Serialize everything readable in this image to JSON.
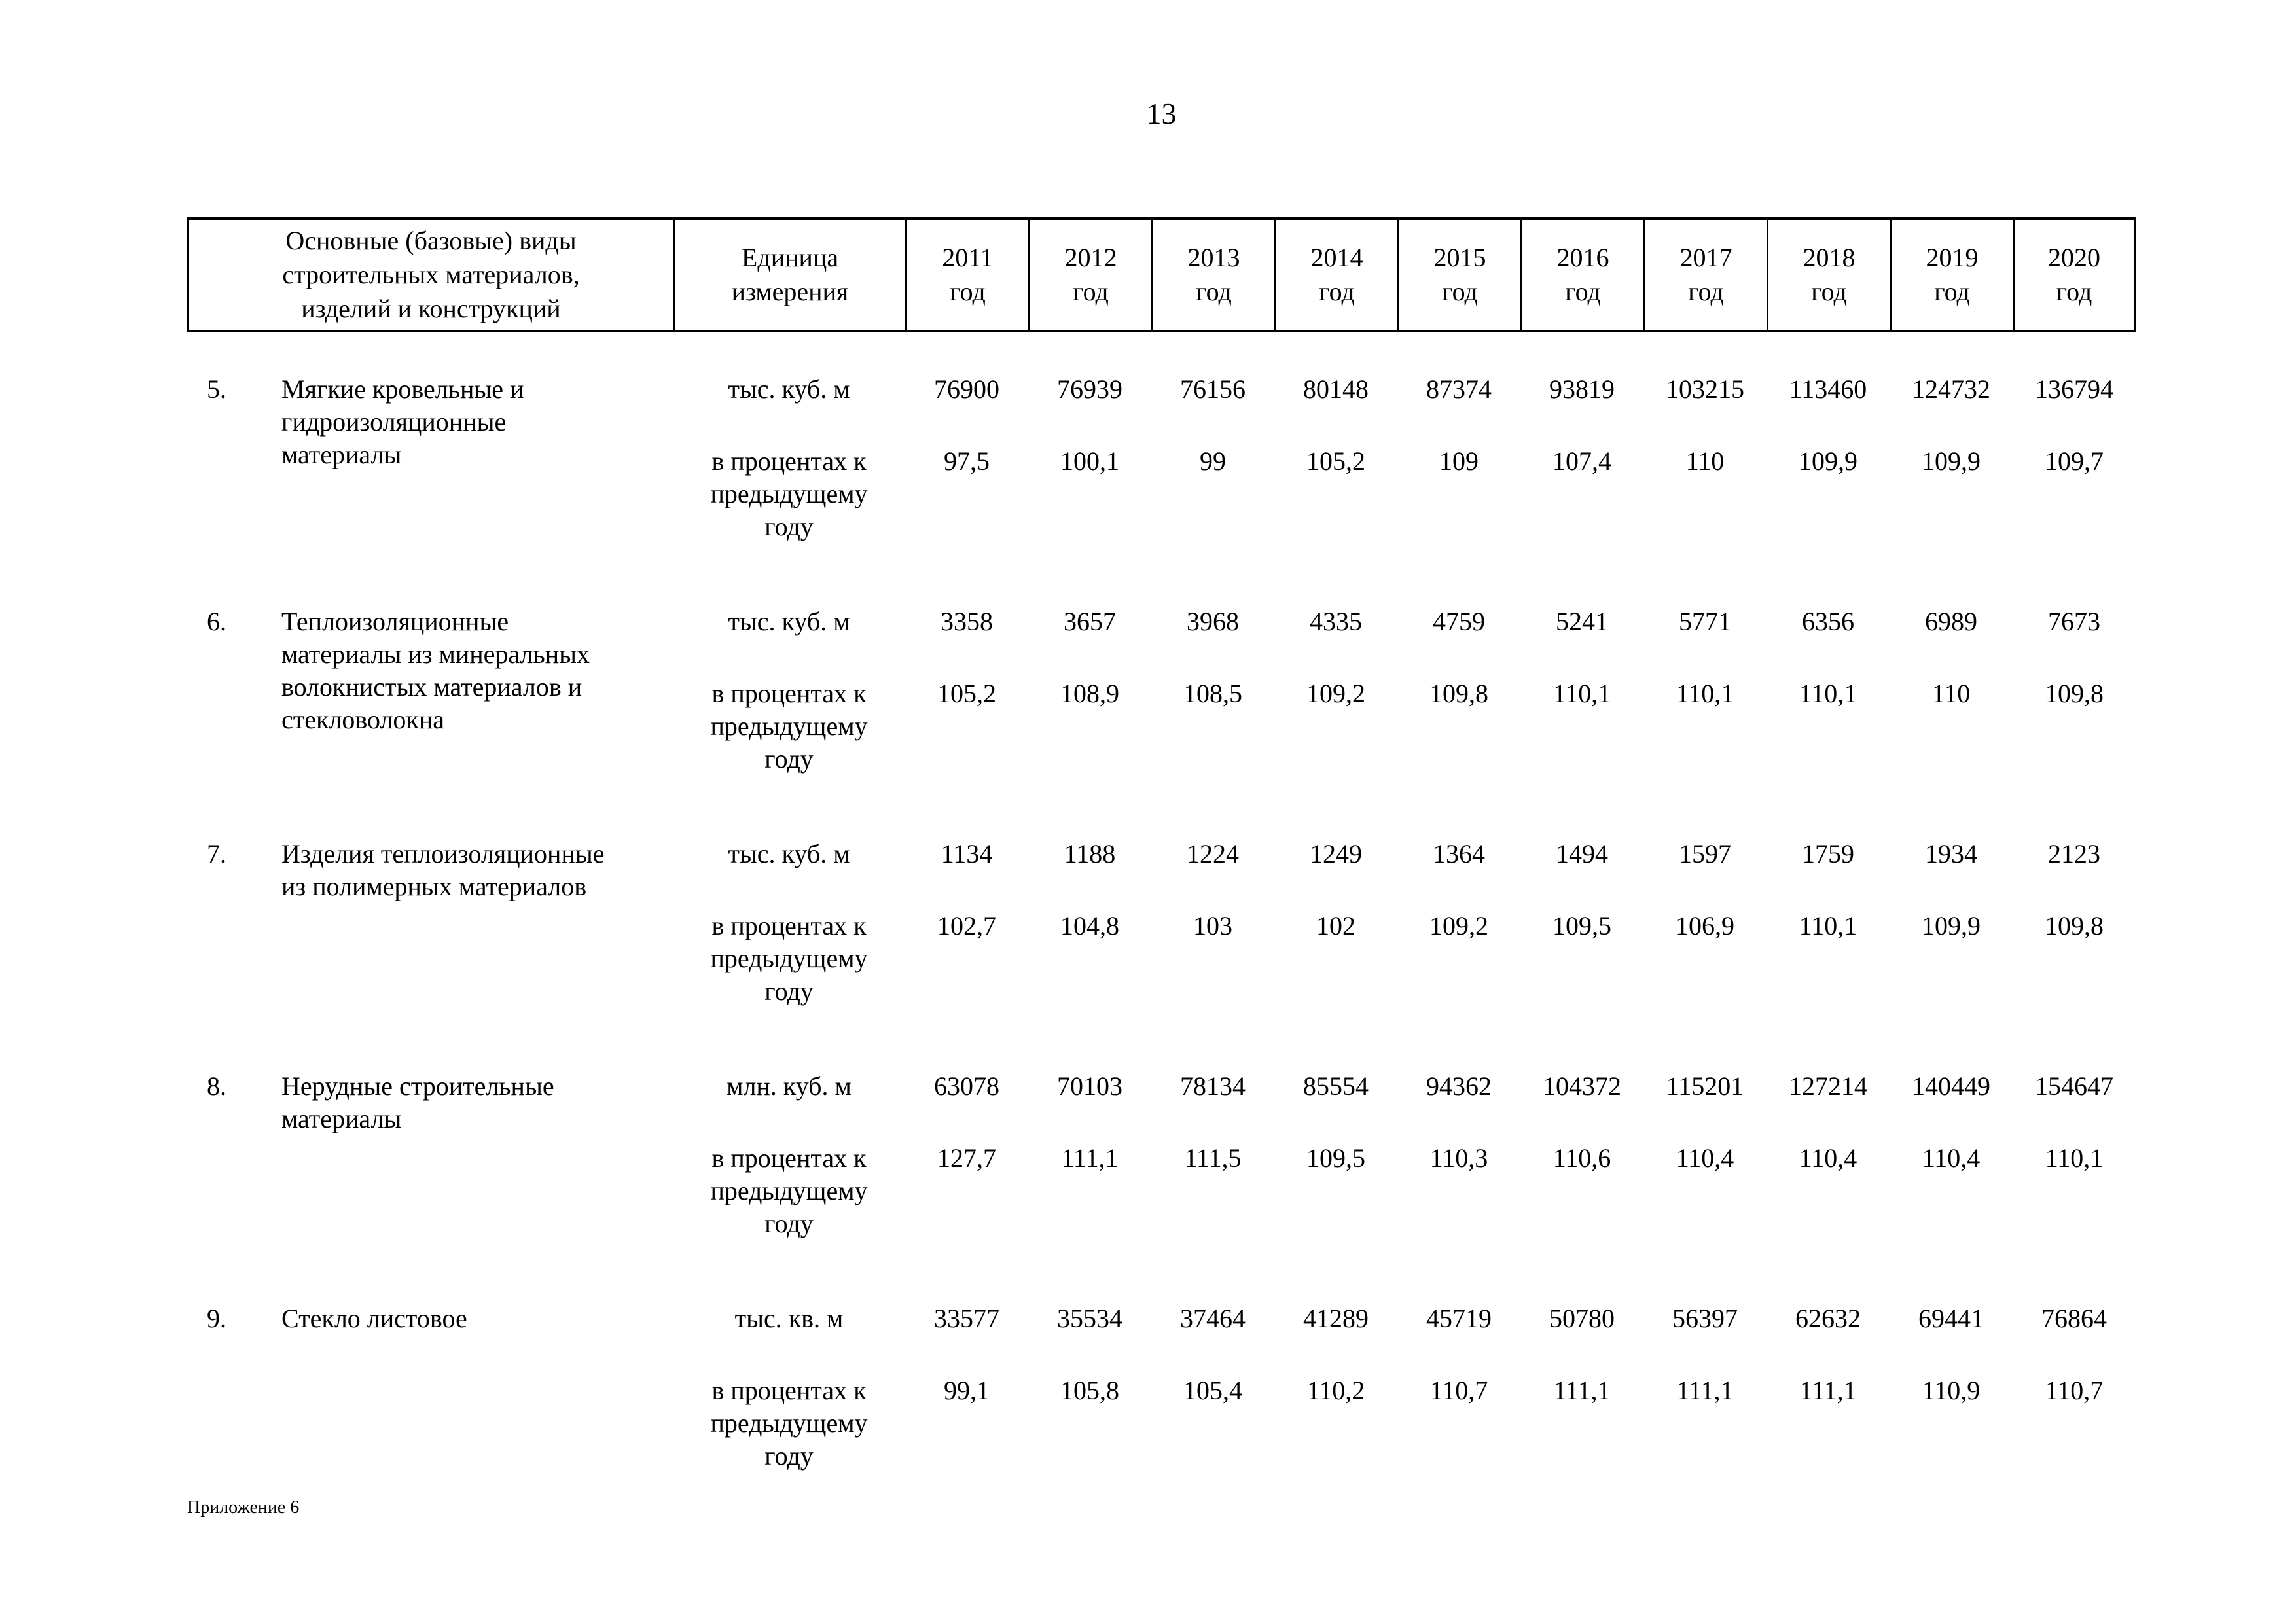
{
  "page": {
    "number": "13",
    "footer": "Приложение 6"
  },
  "table": {
    "header": {
      "materials": "Основные (базовые) виды строительных материалов, изделий и конструкций",
      "unit": "Единица измерения",
      "years": [
        "2011",
        "2012",
        "2013",
        "2014",
        "2015",
        "2016",
        "2017",
        "2018",
        "2019",
        "2020"
      ],
      "year_suffix": "год"
    },
    "rows": [
      {
        "num": "5.",
        "name": "Мягкие кровельные и гидроизоляционные материалы",
        "unit_volume": "тыс. куб. м",
        "volumes": [
          "76900",
          "76939",
          "76156",
          "80148",
          "87374",
          "93819",
          "103215",
          "113460",
          "124732",
          "136794"
        ],
        "unit_percent": "в процентах к предыдущему году",
        "percents": [
          "97,5",
          "100,1",
          "99",
          "105,2",
          "109",
          "107,4",
          "110",
          "109,9",
          "109,9",
          "109,7"
        ]
      },
      {
        "num": "6.",
        "name": "Теплоизоляционные материалы из минеральных волокнистых материалов и стекловолокна",
        "unit_volume": "тыс. куб. м",
        "volumes": [
          "3358",
          "3657",
          "3968",
          "4335",
          "4759",
          "5241",
          "5771",
          "6356",
          "6989",
          "7673"
        ],
        "unit_percent": "в процентах к предыдущему году",
        "percents": [
          "105,2",
          "108,9",
          "108,5",
          "109,2",
          "109,8",
          "110,1",
          "110,1",
          "110,1",
          "110",
          "109,8"
        ]
      },
      {
        "num": "7.",
        "name": "Изделия теплоизоляционные из полимерных материалов",
        "unit_volume": "тыс. куб. м",
        "volumes": [
          "1134",
          "1188",
          "1224",
          "1249",
          "1364",
          "1494",
          "1597",
          "1759",
          "1934",
          "2123"
        ],
        "unit_percent": "в процентах к предыдущему году",
        "percents": [
          "102,7",
          "104,8",
          "103",
          "102",
          "109,2",
          "109,5",
          "106,9",
          "110,1",
          "109,9",
          "109,8"
        ]
      },
      {
        "num": "8.",
        "name": "Нерудные строительные материалы",
        "unit_volume": "млн. куб. м",
        "volumes": [
          "63078",
          "70103",
          "78134",
          "85554",
          "94362",
          "104372",
          "115201",
          "127214",
          "140449",
          "154647"
        ],
        "unit_percent": "в процентах к предыдущему году",
        "percents": [
          "127,7",
          "111,1",
          "111,5",
          "109,5",
          "110,3",
          "110,6",
          "110,4",
          "110,4",
          "110,4",
          "110,1"
        ]
      },
      {
        "num": "9.",
        "name": "Стекло листовое",
        "unit_volume": "тыс. кв. м",
        "volumes": [
          "33577",
          "35534",
          "37464",
          "41289",
          "45719",
          "50780",
          "56397",
          "62632",
          "69441",
          "76864"
        ],
        "unit_percent": "в процентах к предыдущему году",
        "percents": [
          "99,1",
          "105,8",
          "105,4",
          "110,2",
          "110,7",
          "111,1",
          "111,1",
          "111,1",
          "110,9",
          "110,7"
        ]
      }
    ]
  }
}
